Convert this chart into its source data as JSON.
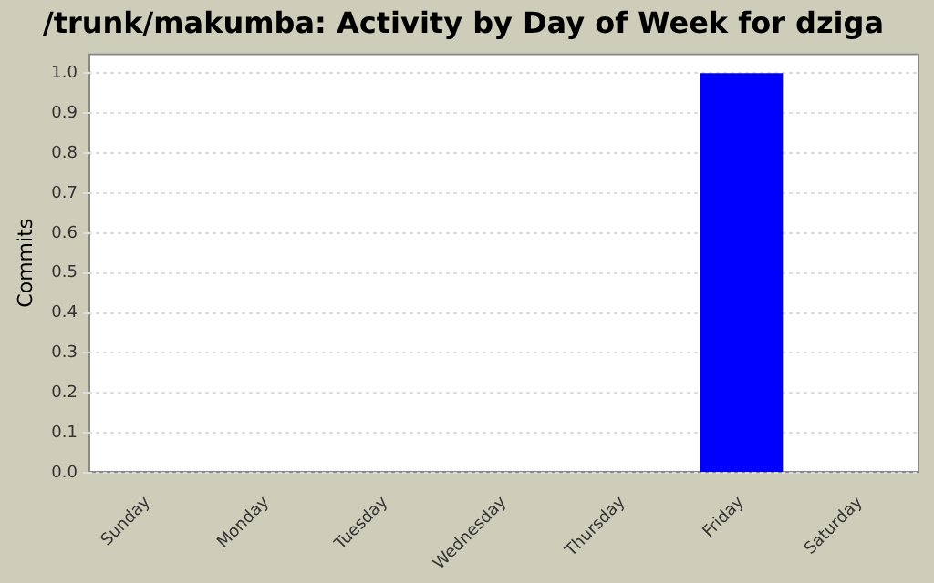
{
  "chart_data": {
    "type": "bar",
    "title": "/trunk/makumba: Activity by Day of Week for dziga",
    "ylabel": "Commits",
    "categories": [
      "Sunday",
      "Monday",
      "Tuesday",
      "Wednesday",
      "Thursday",
      "Friday",
      "Saturday"
    ],
    "values": [
      0,
      0,
      0,
      0,
      0,
      1.0,
      0
    ],
    "color": "#0000ff",
    "ylim": [
      0,
      1.05
    ],
    "yticks": [
      {
        "value": 0,
        "label": "0.0"
      },
      0.1,
      0.2,
      0.3,
      0.4,
      0.5,
      0.6,
      0.7,
      0.8,
      0.9,
      {
        "value": 1,
        "label": "1.0"
      }
    ],
    "grid": "y",
    "legend": false
  }
}
